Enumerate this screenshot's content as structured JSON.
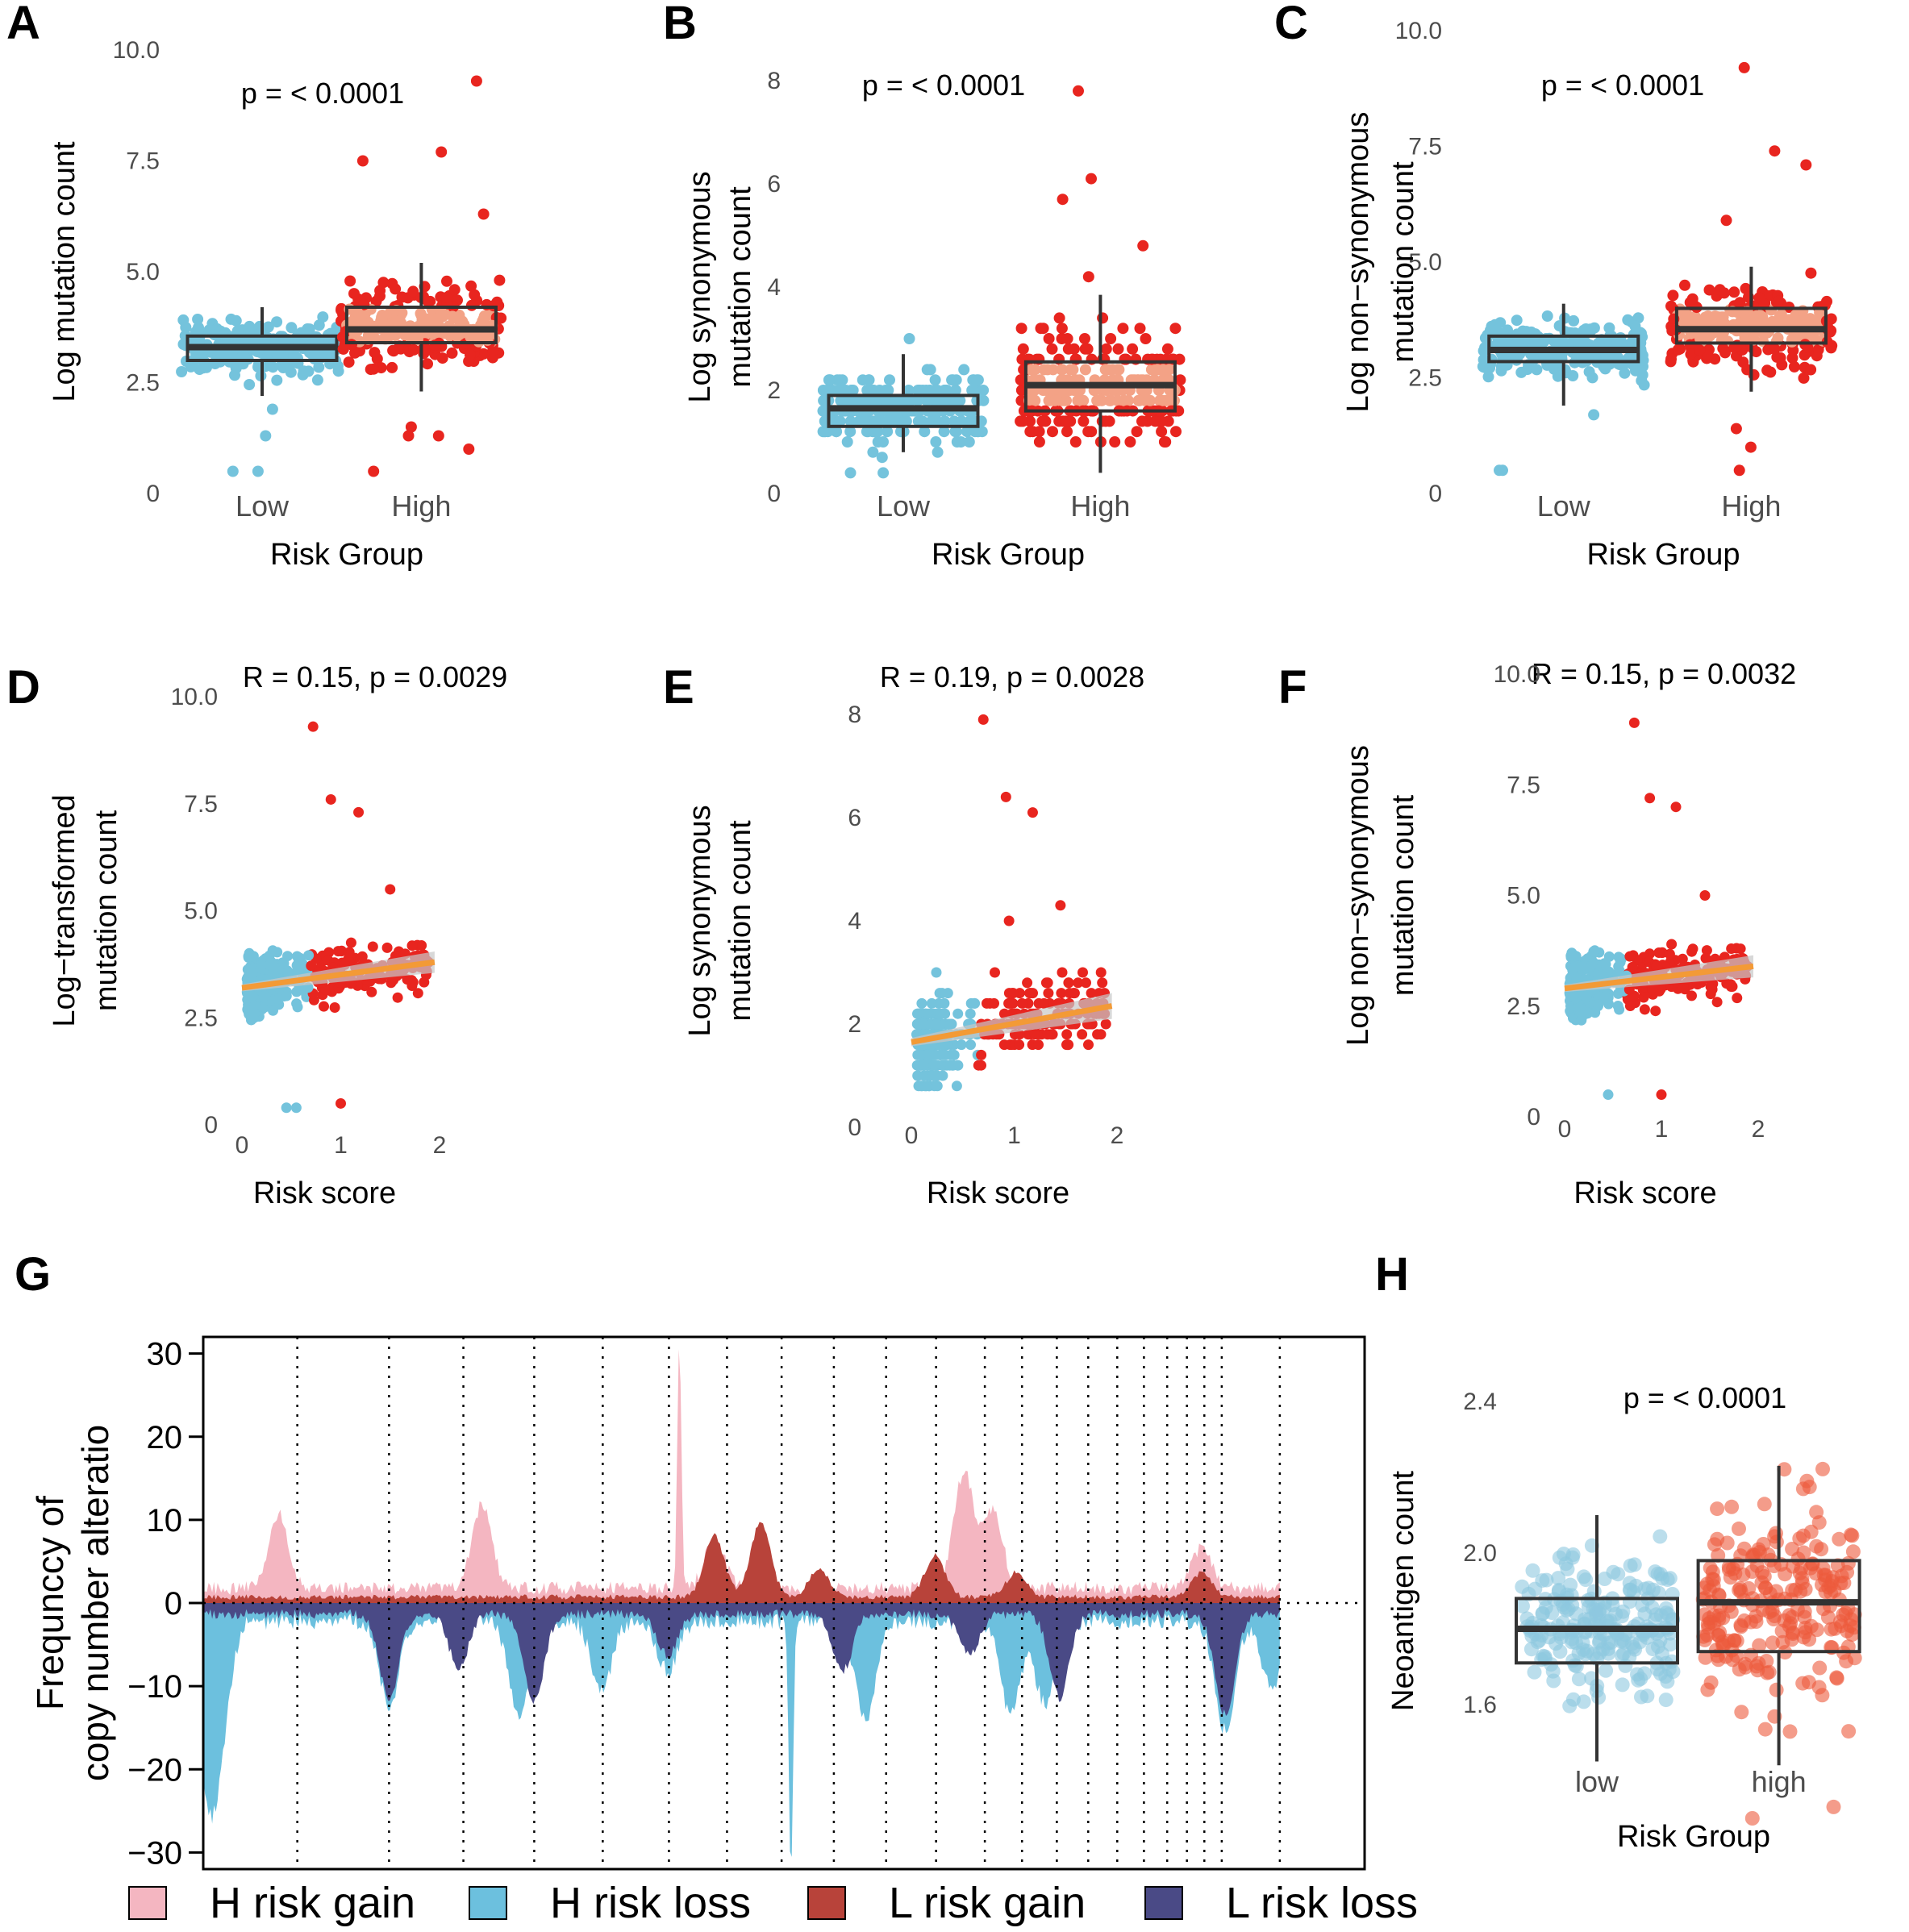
{
  "colors": {
    "low": "#74c3dc",
    "high": "#e8251f",
    "high_box": "#f3a286",
    "trend": "#f39a36",
    "band": "#c8c8c8",
    "h_gain": "#f4b6c1",
    "h_loss": "#6cc0de",
    "l_gain": "#b8433a",
    "l_loss": "#4a4a86",
    "h_low": "#8dc8e0",
    "h_high": "#ec5a3c"
  },
  "chart_data": [
    {
      "id": "A",
      "type": "box",
      "letter": "A",
      "title": "p = < 0.0001",
      "xlabel": "Risk Group",
      "ylabel": "Log mutation count",
      "ylim": [
        0,
        10
      ],
      "yticks": [
        "0",
        "2.5",
        "5.0",
        "7.5",
        "10.0"
      ],
      "ytick_values": [
        0,
        2.5,
        5,
        7.5,
        10
      ],
      "categories": [
        "Low",
        "High"
      ],
      "boxes": [
        {
          "group": "Low",
          "q1": 3.0,
          "median": 3.3,
          "q3": 3.55,
          "whisker_low": 2.2,
          "whisker_high": 4.2,
          "outliers": [
            0.5,
            0.5,
            1.3,
            1.9
          ]
        },
        {
          "group": "High",
          "q1": 3.4,
          "median": 3.7,
          "q3": 4.2,
          "whisker_low": 2.3,
          "whisker_high": 5.2,
          "outliers": [
            0.5,
            1.0,
            1.3,
            1.3,
            1.5,
            6.3,
            7.5,
            7.7,
            9.3
          ]
        }
      ]
    },
    {
      "id": "B",
      "type": "box",
      "letter": "B",
      "title": "p = < 0.0001",
      "xlabel": "Risk Group",
      "ylabel": [
        "Log synonymous",
        "mutation count"
      ],
      "ylim": [
        0,
        8
      ],
      "yticks": [
        "0",
        "2",
        "4",
        "6",
        "8"
      ],
      "ytick_values": [
        0,
        2,
        4,
        6,
        8
      ],
      "categories": [
        "Low",
        "High"
      ],
      "boxes": [
        {
          "group": "Low",
          "q1": 1.3,
          "median": 1.65,
          "q3": 1.9,
          "whisker_low": 0.8,
          "whisker_high": 2.7,
          "outliers": [
            0.4,
            0.4,
            0.7,
            3.0
          ]
        },
        {
          "group": "High",
          "q1": 1.6,
          "median": 2.1,
          "q3": 2.55,
          "whisker_low": 0.4,
          "whisker_high": 3.85,
          "outliers": [
            4.2,
            4.8,
            5.7,
            6.1,
            7.8
          ]
        }
      ]
    },
    {
      "id": "C",
      "type": "box",
      "letter": "C",
      "title": "p = < 0.0001",
      "xlabel": "Risk Group",
      "ylabel": [
        "Log non−synonymous",
        "mutation count"
      ],
      "ylim": [
        0,
        10
      ],
      "yticks": [
        "0",
        "2.5",
        "5.0",
        "7.5",
        "10.0"
      ],
      "ytick_values": [
        0,
        2.5,
        5,
        7.5,
        10
      ],
      "categories": [
        "Low",
        "High"
      ],
      "boxes": [
        {
          "group": "Low",
          "q1": 2.85,
          "median": 3.1,
          "q3": 3.4,
          "whisker_low": 1.9,
          "whisker_high": 4.1,
          "outliers": [
            0.5,
            0.5,
            1.7
          ]
        },
        {
          "group": "High",
          "q1": 3.25,
          "median": 3.55,
          "q3": 4.0,
          "whisker_low": 2.2,
          "whisker_high": 4.9,
          "outliers": [
            0.5,
            1.0,
            1.4,
            5.9,
            7.1,
            7.4,
            9.2
          ]
        }
      ]
    },
    {
      "id": "D",
      "type": "scatter",
      "letter": "D",
      "title": "R = 0.15, p = 0.0029",
      "xlabel": "Risk score",
      "ylabel": [
        "Log−transformed",
        "mutation count"
      ],
      "xlim": [
        0,
        2
      ],
      "xticks": [
        "0",
        "1",
        "2"
      ],
      "xtick_values": [
        0,
        1,
        2
      ],
      "ylim": [
        0,
        10
      ],
      "yticks": [
        "0",
        "2.5",
        "5.0",
        "7.5",
        "10.0"
      ],
      "ytick_values": [
        0,
        2.5,
        5,
        7.5,
        10
      ],
      "threshold": 0.7,
      "fit": {
        "x0": 0.0,
        "y0": 3.2,
        "x1": 1.95,
        "y1": 3.8
      },
      "notable_points": [
        [
          0.72,
          9.3
        ],
        [
          0.9,
          7.6
        ],
        [
          1.18,
          7.3
        ],
        [
          1.0,
          0.5
        ],
        [
          0.45,
          0.4
        ],
        [
          0.55,
          0.4
        ],
        [
          1.5,
          5.5
        ]
      ]
    },
    {
      "id": "E",
      "type": "scatter",
      "letter": "E",
      "title": "R = 0.19, p = 0.0028",
      "xlabel": "Risk score",
      "ylabel": [
        "Log synonymous",
        "mutation count"
      ],
      "xlim": [
        0,
        2
      ],
      "xticks": [
        "0",
        "1",
        "2"
      ],
      "xtick_values": [
        0,
        1,
        2
      ],
      "ylim": [
        0,
        8
      ],
      "yticks": [
        "0",
        "2",
        "4",
        "6",
        "8"
      ],
      "ytick_values": [
        0,
        2,
        4,
        6,
        8
      ],
      "threshold": 0.65,
      "fit": {
        "x0": 0.0,
        "y0": 1.65,
        "x1": 1.95,
        "y1": 2.35
      },
      "notable_points": [
        [
          0.7,
          7.9
        ],
        [
          0.92,
          6.4
        ],
        [
          1.18,
          6.1
        ],
        [
          1.45,
          4.3
        ],
        [
          0.95,
          4.0
        ]
      ]
    },
    {
      "id": "F",
      "type": "scatter",
      "letter": "F",
      "title": "R = 0.15, p = 0.0032",
      "xlabel": "Risk score",
      "ylabel": [
        "Log non−synonymous",
        "mutation count"
      ],
      "xlim": [
        0,
        2
      ],
      "xticks": [
        "0",
        "1",
        "2"
      ],
      "xtick_values": [
        0,
        1,
        2
      ],
      "ylim": [
        0,
        10
      ],
      "yticks": [
        "0",
        "2.5",
        "5.0",
        "7.5",
        "10.0"
      ],
      "ytick_values": [
        0,
        2.5,
        5,
        7.5,
        10
      ],
      "threshold": 0.65,
      "fit": {
        "x0": 0.0,
        "y0": 2.9,
        "x1": 1.95,
        "y1": 3.4
      },
      "notable_points": [
        [
          0.72,
          8.9
        ],
        [
          0.88,
          7.2
        ],
        [
          1.15,
          7.0
        ],
        [
          1.0,
          0.5
        ],
        [
          0.45,
          0.5
        ],
        [
          1.45,
          5.0
        ]
      ]
    },
    {
      "id": "G",
      "type": "area",
      "letter": "G",
      "ylabel": [
        "Frequnccy of",
        "copy number alteratio"
      ],
      "ylim": [
        -32,
        32
      ],
      "yticks": [
        "30",
        "20",
        "10",
        "0",
        "−10",
        "−20",
        "−30"
      ],
      "ytick_values": [
        30,
        20,
        10,
        0,
        -10,
        -20,
        -30
      ],
      "chromosome_boundaries": [
        0.0,
        0.081,
        0.16,
        0.224,
        0.285,
        0.344,
        0.401,
        0.451,
        0.498,
        0.543,
        0.588,
        0.631,
        0.673,
        0.705,
        0.735,
        0.762,
        0.787,
        0.81,
        0.83,
        0.847,
        0.862,
        0.877,
        0.927,
        1.0
      ],
      "series": [
        {
          "name": "H risk gain",
          "sign": 1,
          "base": 2.0,
          "peaks": [
            [
              0.065,
              9.0
            ],
            [
              0.24,
              10.0
            ],
            [
              0.41,
              29.5
            ],
            [
              0.44,
              6.0
            ],
            [
              0.655,
              14.0
            ],
            [
              0.68,
              9.0
            ],
            [
              0.86,
              5.0
            ]
          ]
        },
        {
          "name": "H risk loss",
          "sign": -1,
          "base": 2.5,
          "peaks": [
            [
              0.003,
              18.0
            ],
            [
              0.015,
              11.5
            ],
            [
              0.16,
              10.0
            ],
            [
              0.272,
              11.0
            ],
            [
              0.343,
              8.5
            ],
            [
              0.4,
              6.0
            ],
            [
              0.506,
              31.5
            ],
            [
              0.57,
              12.0
            ],
            [
              0.695,
              11.0
            ],
            [
              0.725,
              10.0
            ],
            [
              0.88,
              13.0
            ],
            [
              0.92,
              8.0
            ]
          ]
        },
        {
          "name": "L risk gain",
          "sign": 1,
          "base": 0.8,
          "peaks": [
            [
              0.44,
              7.5
            ],
            [
              0.48,
              9.0
            ],
            [
              0.53,
              3.5
            ],
            [
              0.63,
              5.0
            ],
            [
              0.7,
              3.0
            ],
            [
              0.86,
              3.0
            ]
          ]
        },
        {
          "name": "L risk loss",
          "sign": -1,
          "base": 1.5,
          "peaks": [
            [
              0.16,
              10.0
            ],
            [
              0.22,
              6.5
            ],
            [
              0.285,
              10.5
            ],
            [
              0.4,
              5.0
            ],
            [
              0.55,
              7.0
            ],
            [
              0.66,
              5.0
            ],
            [
              0.737,
              10.0
            ],
            [
              0.88,
              12.0
            ]
          ]
        }
      ],
      "legend": [
        "H risk gain",
        "H risk loss",
        "L risk gain",
        "L risk loss"
      ]
    },
    {
      "id": "H",
      "type": "box",
      "letter": "H",
      "title": "p = < 0.0001",
      "xlabel": "Risk Group",
      "ylabel": "Neoantigen count",
      "ylim": [
        1.4,
        2.4
      ],
      "yticks": [
        "1.6",
        "2.0",
        "2.4"
      ],
      "ytick_values": [
        1.6,
        2.0,
        2.4
      ],
      "categories": [
        "low",
        "high"
      ],
      "boxes": [
        {
          "group": "low",
          "q1": 1.71,
          "median": 1.8,
          "q3": 1.88,
          "whisker_low": 1.45,
          "whisker_high": 2.1,
          "outliers": []
        },
        {
          "group": "high",
          "q1": 1.74,
          "median": 1.87,
          "q3": 1.98,
          "whisker_low": 1.44,
          "whisker_high": 2.23,
          "outliers": [
            1.3,
            1.33
          ]
        }
      ]
    }
  ]
}
